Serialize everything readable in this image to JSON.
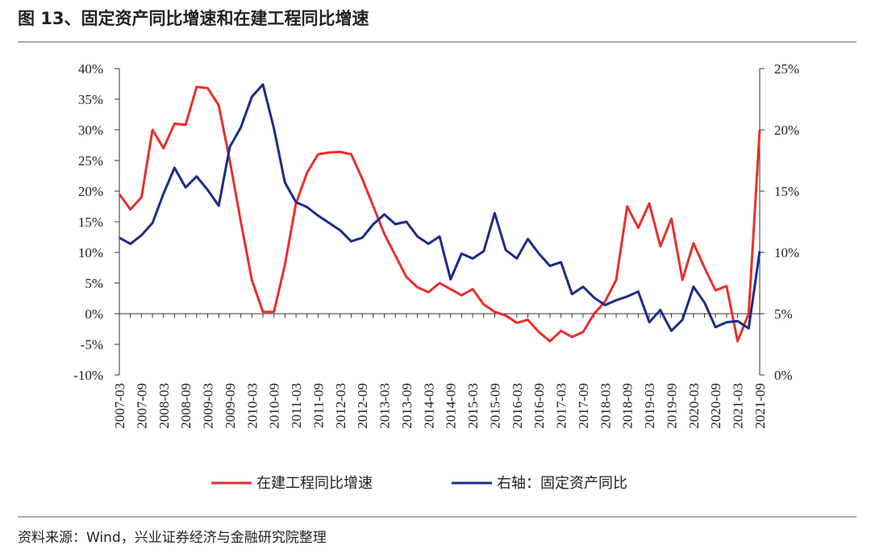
{
  "chart_data": {
    "type": "line",
    "title": "图 13、固定资产同比增速和在建工程同比增速",
    "source": "资料来源：Wind，兴业证券经济与金融研究院整理",
    "categories": [
      "2007-03",
      null,
      "2007-09",
      null,
      "2008-03",
      null,
      "2008-09",
      null,
      "2009-03",
      null,
      "2009-09",
      null,
      "2010-03",
      null,
      "2010-09",
      null,
      "2011-03",
      null,
      "2011-09",
      null,
      "2012-03",
      null,
      "2012-09",
      null,
      "2013-03",
      null,
      "2013-09",
      null,
      "2014-03",
      null,
      "2014-09",
      null,
      "2015-03",
      null,
      "2015-09",
      null,
      "2016-03",
      null,
      "2016-09",
      null,
      "2017-03",
      null,
      "2017-09",
      null,
      "2018-03",
      null,
      "2018-09",
      null,
      "2019-03",
      null,
      "2019-09",
      null,
      "2020-03",
      null,
      "2020-09",
      null,
      "2021-03",
      null,
      "2021-09"
    ],
    "series": [
      {
        "name": "在建工程同比增速",
        "color": "#e8302a",
        "axis": "y",
        "values": [
          19.5,
          17,
          19,
          30,
          27,
          31,
          30.8,
          37,
          36.8,
          34,
          25,
          15,
          5.5,
          0.3,
          0.3,
          8,
          18,
          23,
          26,
          26.3,
          26.4,
          26,
          22,
          17.5,
          13,
          9.5,
          6,
          4.3,
          3.5,
          5,
          4,
          3,
          4,
          1.5,
          0.3,
          -0.3,
          -1.5,
          -1,
          -3,
          -4.5,
          -2.8,
          -3.8,
          -3,
          0,
          2,
          5.5,
          17.5,
          14,
          18,
          11,
          15.5,
          5.5,
          11.5,
          7.5,
          3.8,
          4.5,
          -4.5,
          0,
          30
        ]
      },
      {
        "name": "右轴：固定资产同比",
        "color": "#1a2d8a",
        "axis": "y2",
        "values": [
          11.2,
          10.7,
          11.4,
          12.4,
          14.8,
          16.9,
          15.3,
          16.2,
          15.1,
          13.8,
          18.6,
          20.2,
          22.7,
          23.7,
          20.1,
          15.7,
          14.1,
          13.7,
          13,
          12.4,
          11.8,
          10.9,
          11.2,
          12.3,
          13.1,
          12.3,
          12.5,
          11.3,
          10.7,
          11.3,
          7.8,
          9.9,
          9.5,
          10.1,
          13.2,
          10.2,
          9.5,
          11.1,
          9.9,
          8.9,
          9.2,
          6.6,
          7.2,
          6.3,
          5.7,
          6.1,
          6.4,
          6.8,
          4.3,
          5.3,
          3.6,
          4.5,
          7.2,
          5.9,
          3.9,
          4.3,
          4.4,
          3.8,
          10.1
        ]
      }
    ],
    "ylim": [
      -10,
      40
    ],
    "yticks": [
      {
        "value": -10,
        "label": "-10%"
      },
      {
        "value": -5,
        "label": "-5%"
      },
      {
        "value": 0,
        "label": "0%"
      },
      {
        "value": 5,
        "label": "5%"
      },
      {
        "value": 10,
        "label": "10%"
      },
      {
        "value": 15,
        "label": "15%"
      },
      {
        "value": 20,
        "label": "20%"
      },
      {
        "value": 25,
        "label": "25%"
      },
      {
        "value": 30,
        "label": "30%"
      },
      {
        "value": 35,
        "label": "35%"
      },
      {
        "value": 40,
        "label": "40%"
      }
    ],
    "y2lim": [
      0,
      25
    ],
    "y2ticks": [
      {
        "value": 0,
        "label": "0%"
      },
      {
        "value": 5,
        "label": "5%"
      },
      {
        "value": 10,
        "label": "10%"
      },
      {
        "value": 15,
        "label": "15%"
      },
      {
        "value": 20,
        "label": "20%"
      },
      {
        "value": 25,
        "label": "25%"
      }
    ],
    "legend": "bottom"
  }
}
